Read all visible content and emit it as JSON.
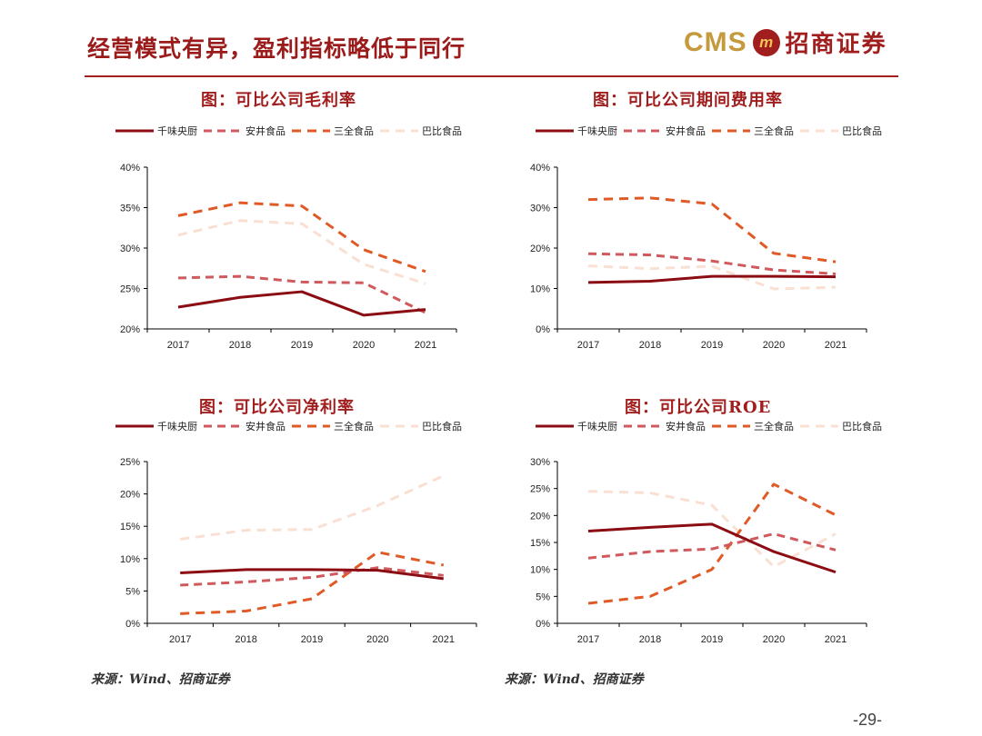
{
  "header": {
    "title": "经营模式有异，盈利指标略低于同行",
    "logo_text": "CMS",
    "logo_mark": "m",
    "logo_cn": "招商证券"
  },
  "legend_names": [
    "千味央厨",
    "安井食品",
    "三全食品",
    "巴比食品"
  ],
  "series_styles": [
    {
      "color": "#8b0c12",
      "dash": "none",
      "width": 3
    },
    {
      "color": "#d0595e",
      "dash": "9,6",
      "width": 3
    },
    {
      "color": "#e05a26",
      "dash": "10,7",
      "width": 3
    },
    {
      "color": "#f9e0d3",
      "dash": "10,7",
      "width": 3
    }
  ],
  "chart_data": [
    {
      "id": "gross-margin",
      "type": "line",
      "title": "图：可比公司毛利率",
      "categories": [
        "2017",
        "2018",
        "2019",
        "2020",
        "2021"
      ],
      "y_ticks": [
        20,
        25,
        30,
        35,
        40
      ],
      "ylim": [
        20,
        40
      ],
      "y_format": "%",
      "series": [
        {
          "name": "千味央厨",
          "values": [
            22.7,
            23.9,
            24.6,
            21.7,
            22.4
          ]
        },
        {
          "name": "安井食品",
          "values": [
            26.3,
            26.5,
            25.8,
            25.7,
            22.0
          ]
        },
        {
          "name": "三全食品",
          "values": [
            34.0,
            35.6,
            35.2,
            29.8,
            27.1
          ]
        },
        {
          "name": "巴比食品",
          "values": [
            31.6,
            33.4,
            33.0,
            28.0,
            25.6
          ]
        }
      ]
    },
    {
      "id": "expense-ratio",
      "type": "line",
      "title": "图：可比公司期间费用率",
      "categories": [
        "2017",
        "2018",
        "2019",
        "2020",
        "2021"
      ],
      "y_ticks": [
        0,
        10,
        20,
        30,
        40
      ],
      "ylim": [
        0,
        40
      ],
      "y_format": "%",
      "series": [
        {
          "name": "千味央厨",
          "values": [
            11.5,
            11.8,
            13.0,
            13.0,
            12.9
          ]
        },
        {
          "name": "安井食品",
          "values": [
            18.6,
            18.3,
            16.8,
            14.6,
            13.6
          ]
        },
        {
          "name": "三全食品",
          "values": [
            32.0,
            32.4,
            30.9,
            18.7,
            16.6
          ]
        },
        {
          "name": "巴比食品",
          "values": [
            15.6,
            14.9,
            15.5,
            9.9,
            10.3
          ]
        }
      ]
    },
    {
      "id": "net-margin",
      "type": "line",
      "title": "图：可比公司净利率",
      "categories": [
        "2017",
        "2018",
        "2019",
        "2020",
        "2021"
      ],
      "y_ticks": [
        0,
        5,
        10,
        15,
        20,
        25
      ],
      "ylim": [
        0,
        25
      ],
      "y_format": "%",
      "series": [
        {
          "name": "千味央厨",
          "values": [
            7.8,
            8.3,
            8.3,
            8.2,
            6.9
          ]
        },
        {
          "name": "安井食品",
          "values": [
            5.9,
            6.4,
            7.1,
            8.6,
            7.4
          ]
        },
        {
          "name": "三全食品",
          "values": [
            1.5,
            1.9,
            3.8,
            11.0,
            9.0
          ]
        },
        {
          "name": "巴比食品",
          "values": [
            13.0,
            14.4,
            14.5,
            18.2,
            22.8
          ]
        }
      ]
    },
    {
      "id": "roe",
      "type": "line",
      "title": "图：可比公司ROE",
      "categories": [
        "2017",
        "2018",
        "2019",
        "2020",
        "2021"
      ],
      "y_ticks": [
        0,
        5,
        10,
        15,
        20,
        25,
        30
      ],
      "ylim": [
        0,
        30
      ],
      "y_format": "%",
      "series": [
        {
          "name": "千味央厨",
          "values": [
            17.1,
            17.8,
            18.4,
            13.3,
            9.5
          ]
        },
        {
          "name": "安井食品",
          "values": [
            12.1,
            13.3,
            13.8,
            16.6,
            13.6
          ]
        },
        {
          "name": "三全食品",
          "values": [
            3.7,
            5.0,
            10.0,
            25.8,
            20.1
          ]
        },
        {
          "name": "巴比食品",
          "values": [
            24.5,
            24.2,
            21.9,
            10.5,
            16.6
          ]
        }
      ]
    }
  ],
  "sources": [
    "来源：Wind、招商证券",
    "来源：Wind、招商证券"
  ],
  "page_number": "-29-"
}
